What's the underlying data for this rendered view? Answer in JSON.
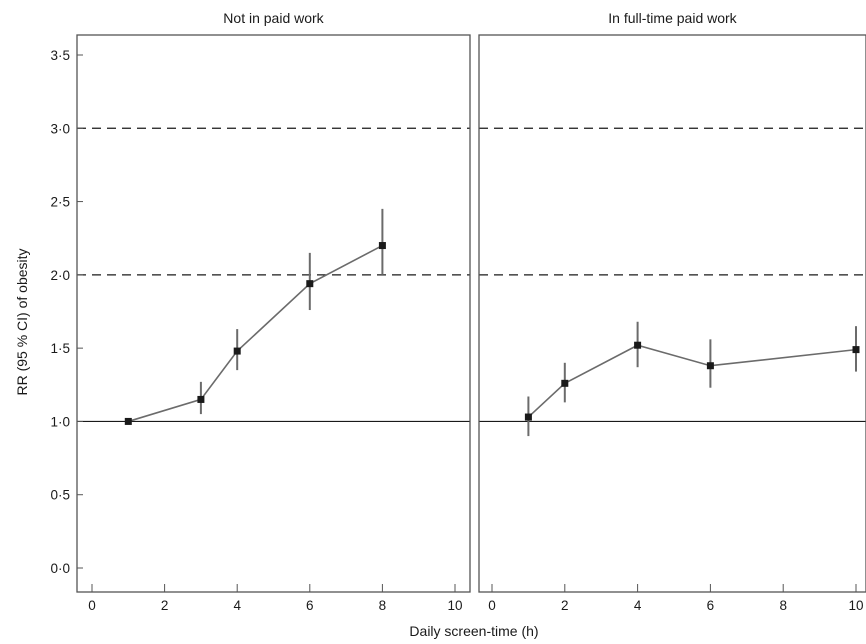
{
  "chart_data": {
    "type": "line",
    "ylabel": "RR (95 % CI) of obesity",
    "xlabel": "Daily screen-time (h)",
    "ylim": [
      0,
      3.5
    ],
    "yticks": [
      0,
      0.5,
      1.0,
      1.5,
      2.0,
      2.5,
      3.0,
      3.5
    ],
    "ytick_labels": [
      "0·0",
      "0·5",
      "1·0",
      "1·5",
      "2·0",
      "2·5",
      "3·0",
      "3·5"
    ],
    "xlim": [
      0,
      10
    ],
    "xticks": [
      0,
      2,
      4,
      6,
      8,
      10
    ],
    "xtick_labels": [
      "0",
      "2",
      "4",
      "6",
      "8",
      "10"
    ],
    "reference_lines": [
      {
        "y": 1.0,
        "style": "solid"
      },
      {
        "y": 2.0,
        "style": "dashed"
      },
      {
        "y": 3.0,
        "style": "dashed"
      }
    ],
    "grid": false,
    "colors": {
      "series": "#6b6b6b",
      "marker": "#1a1a1a",
      "frame": "#555555",
      "reference": "#1a1a1a"
    },
    "panels": [
      {
        "title": "Not in paid work",
        "points": [
          {
            "x": 1,
            "y": 1.0,
            "lo": 1.0,
            "hi": 1.0
          },
          {
            "x": 3,
            "y": 1.15,
            "lo": 1.05,
            "hi": 1.27
          },
          {
            "x": 4,
            "y": 1.48,
            "lo": 1.35,
            "hi": 1.63
          },
          {
            "x": 6,
            "y": 1.94,
            "lo": 1.76,
            "hi": 2.15
          },
          {
            "x": 8,
            "y": 2.2,
            "lo": 2.0,
            "hi": 2.45
          }
        ]
      },
      {
        "title": "In full-time paid work",
        "points": [
          {
            "x": 1,
            "y": 1.03,
            "lo": 0.9,
            "hi": 1.17
          },
          {
            "x": 2,
            "y": 1.26,
            "lo": 1.13,
            "hi": 1.4
          },
          {
            "x": 4,
            "y": 1.52,
            "lo": 1.37,
            "hi": 1.68
          },
          {
            "x": 6,
            "y": 1.38,
            "lo": 1.23,
            "hi": 1.56
          },
          {
            "x": 10,
            "y": 1.49,
            "lo": 1.34,
            "hi": 1.65
          }
        ]
      }
    ]
  }
}
